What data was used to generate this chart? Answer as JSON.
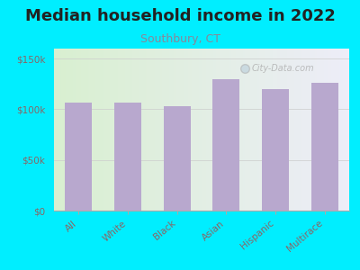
{
  "title": "Median household income in 2022",
  "subtitle": "Southbury, CT",
  "categories": [
    "All",
    "White",
    "Black",
    "Asian",
    "Hispanic",
    "Multirace"
  ],
  "values": [
    107000,
    107000,
    103000,
    130000,
    120000,
    126000
  ],
  "bar_color": "#b8a8ce",
  "background_outer": "#00eeff",
  "grad_left": "#d8efd0",
  "grad_right": "#ededf8",
  "title_fontsize": 13,
  "subtitle_fontsize": 9,
  "subtitle_color": "#888899",
  "tick_label_color": "#886666",
  "ylim": [
    0,
    160000
  ],
  "yticks": [
    0,
    50000,
    100000,
    150000
  ],
  "ytick_labels": [
    "$0",
    "$50k",
    "$100k",
    "$150k"
  ],
  "watermark": "City-Data.com"
}
